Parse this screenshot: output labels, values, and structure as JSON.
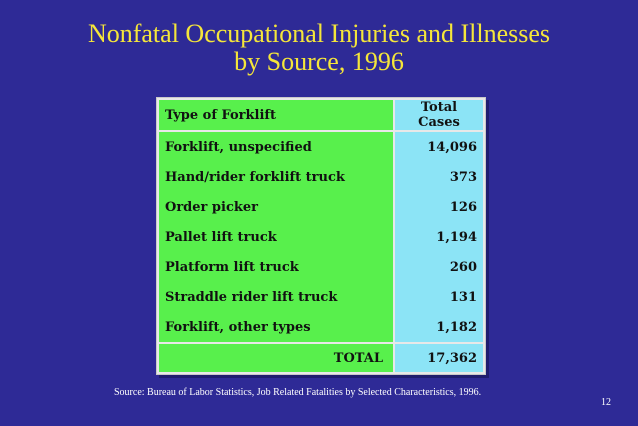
{
  "title": {
    "line1": "Nonfatal Occupational Injuries and Illnesses",
    "line2": "by Source, 1996"
  },
  "table": {
    "headers": {
      "type": "Type of Forklift",
      "total": "Total Cases"
    },
    "rows": [
      {
        "type": "Forklift, unspecified",
        "total": "14,096"
      },
      {
        "type": "Hand/rider forklift truck",
        "total": "373"
      },
      {
        "type": "Order picker",
        "total": "126"
      },
      {
        "type": "Pallet lift truck",
        "total": "1,194"
      },
      {
        "type": "Platform lift truck",
        "total": "260"
      },
      {
        "type": "Straddle rider lift truck",
        "total": "131"
      },
      {
        "type": "Forklift, other types",
        "total": "1,182"
      }
    ],
    "footer": {
      "label": "TOTAL",
      "total": "17,362"
    }
  },
  "source": "Source: Bureau of Labor Statistics,  Job Related Fatalities by Selected Characteristics, 1996.",
  "slide_number": "12",
  "colors": {
    "background": "#2e2a96",
    "title": "#f5e63a",
    "type_column": "#58f04c",
    "total_column": "#8ce4f6"
  }
}
